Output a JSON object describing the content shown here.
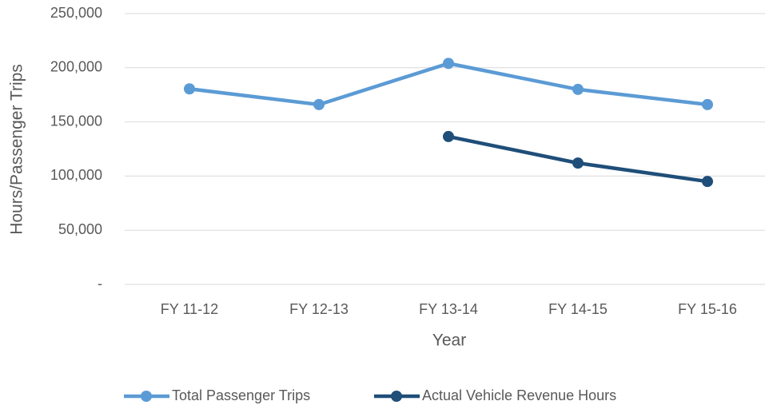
{
  "chart_data": {
    "type": "line",
    "x_label": "Year",
    "y_label": "Hours/Passenger Trips",
    "categories": [
      "FY 11-12",
      "FY 12-13",
      "FY 13-14",
      "FY 14-15",
      "FY 15-16"
    ],
    "series": [
      {
        "name": "Total Passenger Trips",
        "color": "#5b9bd5",
        "values": [
          180500,
          166000,
          204000,
          180000,
          166000
        ]
      },
      {
        "name": "Actual Vehicle Revenue Hours",
        "color": "#1f4e79",
        "values": [
          null,
          null,
          136500,
          112000,
          95000
        ]
      }
    ],
    "ylim": [
      0,
      250000
    ],
    "yticks": [
      {
        "value": 0,
        "label": "-"
      },
      {
        "value": 50000,
        "label": "50,000"
      },
      {
        "value": 100000,
        "label": "100,000"
      },
      {
        "value": 150000,
        "label": "150,000"
      },
      {
        "value": 200000,
        "label": "200,000"
      },
      {
        "value": 250000,
        "label": "250,000"
      }
    ],
    "grid": true,
    "legend": "bottom"
  }
}
